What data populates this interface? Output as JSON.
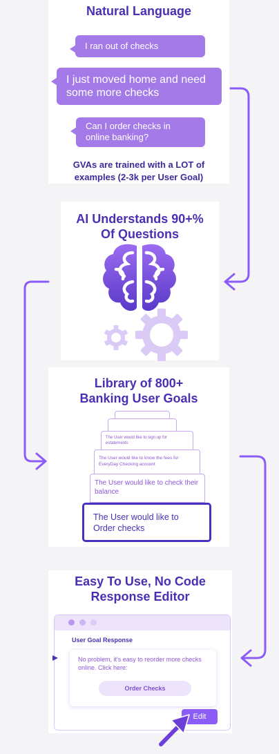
{
  "panel1": {
    "title": "Natural Language",
    "bubbles": [
      "I ran out of checks",
      "I just moved home and need some more checks",
      "Can I order checks in online banking?"
    ],
    "note": "GVAs are trained with a LOT of examples (2-3k per User Goal)"
  },
  "panel2": {
    "title": "AI Understands 90+% Of Questions",
    "icon": "brain-with-gears-icon"
  },
  "panel3": {
    "title": "Library of 800+ Banking User Goals",
    "cards": [
      "",
      "",
      "The User would like to sign up for estatements",
      "The User would like to know the fees for EveryDay Checking account",
      "The User would like to check their balance",
      "The User would like to Order checks"
    ]
  },
  "panel4": {
    "title": "Easy To Use, No Code Response Editor",
    "editor_label": "User Goal Response",
    "response_text": "No problem, it's easy to reorder more checks online. Click here:",
    "order_button": "Order Checks",
    "edit_button": "Edit",
    "cursor_icon": "pointer-cursor-icon"
  },
  "colors": {
    "heading": "#4a2fb3",
    "bubble": "#a47ae8",
    "arrow": "#8b5cf6",
    "card_border": "#c7a9f2",
    "front_card_border": "#4a32c0"
  }
}
